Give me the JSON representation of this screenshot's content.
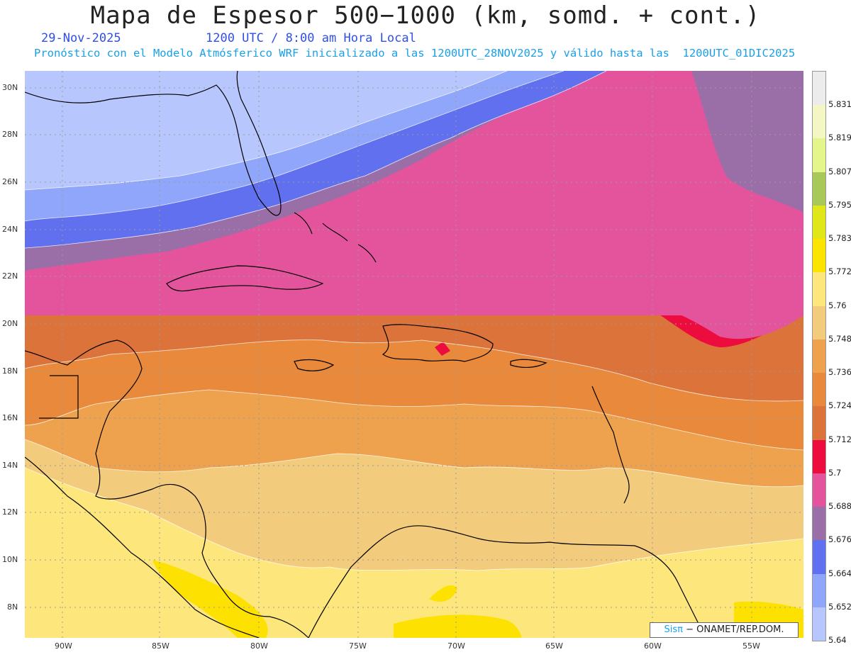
{
  "header": {
    "title": "Mapa de Espesor 500−1000 (km, somd. + cont.)",
    "date": "29-Nov-2025",
    "time": "1200 UTC / 8:00 am Hora Local",
    "forecast": "Pronóstico con el Modelo Atmósferico WRF inicializado a las 1200UTC_28NOV2025 y válido hasta las  1200UTC_01DIC2025"
  },
  "map": {
    "lat_labels": [
      "30N",
      "28N",
      "26N",
      "24N",
      "22N",
      "20N",
      "18N",
      "16N",
      "14N",
      "12N",
      "10N",
      "8N"
    ],
    "lon_labels": [
      "90W",
      "85W",
      "80W",
      "75W",
      "70W",
      "65W",
      "60W",
      "55W"
    ],
    "contour_bands": [
      {
        "value": 5.64,
        "color": "#b7c6fc"
      },
      {
        "value": 5.652,
        "color": "#8fa6fb"
      },
      {
        "value": 5.664,
        "color": "#6070ee"
      },
      {
        "value": 5.676,
        "color": "#9a6fa8"
      },
      {
        "value": 5.688,
        "color": "#e4549c"
      },
      {
        "value": 5.7,
        "color": "#ec0d3e"
      },
      {
        "value": 5.712,
        "color": "#db733a"
      },
      {
        "value": 5.724,
        "color": "#e9893c"
      },
      {
        "value": 5.736,
        "color": "#efa24d"
      },
      {
        "value": 5.748,
        "color": "#f3cb7c"
      },
      {
        "value": 5.76,
        "color": "#fde77c"
      },
      {
        "value": 5.772,
        "color": "#fde100"
      }
    ]
  },
  "colorbar": {
    "labels": [
      "5.831",
      "5.819",
      "5.807",
      "5.795",
      "5.783",
      "5.772",
      "5.76",
      "5.748",
      "5.736",
      "5.724",
      "5.712",
      "5.7",
      "5.688",
      "5.676",
      "5.664",
      "5.652",
      "5.64"
    ],
    "colors": [
      "#ececec",
      "#f4f7c4",
      "#e3f58b",
      "#a8c85a",
      "#dfe71b",
      "#fbe500",
      "#fde77c",
      "#f3cb7c",
      "#efa24d",
      "#e9893c",
      "#db733a",
      "#ec0d3e",
      "#e4549c",
      "#9a6fa8",
      "#6070ee",
      "#8fa6fb",
      "#b7c6fc"
    ]
  },
  "credit": {
    "sis": "Sisπ",
    "org": "− ONAMET/REP.DOM."
  }
}
